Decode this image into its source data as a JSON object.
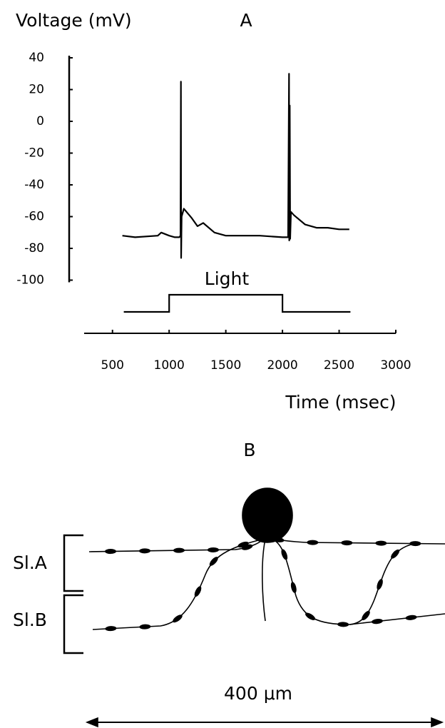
{
  "chart_data": {
    "type": "line",
    "title": "A",
    "y_label": "Voltage (mV)",
    "x_label": "Time (msec)",
    "x": [
      587,
      700,
      900,
      930,
      1000,
      1050,
      1090,
      1100,
      1104,
      1106,
      1110,
      1130,
      1200,
      1250,
      1300,
      1400,
      1500,
      1600,
      1800,
      2000,
      2050,
      2058,
      2060,
      2064,
      2068,
      2075,
      2100,
      2200,
      2300,
      2400,
      2500,
      2590
    ],
    "series": [
      {
        "color": "#000000",
        "values": [
          -72,
          -73,
          -72,
          -70,
          -72,
          -73,
          -73,
          -72,
          25,
          -86,
          -60,
          -55,
          -61,
          -66,
          -64,
          -70,
          -72,
          -72,
          -72,
          -73,
          -73,
          30,
          -75,
          10,
          -74,
          -57,
          -59,
          -65,
          -67,
          -67,
          -68,
          -68
        ]
      }
    ],
    "xlim": [
      250,
      3000
    ],
    "xticks": [
      500,
      1000,
      1500,
      2000,
      2500,
      3000
    ],
    "ylim": [
      -100,
      40
    ],
    "yticks": [
      -100,
      -80,
      -60,
      -40,
      -20,
      0,
      20,
      40
    ],
    "light": {
      "name": "Light",
      "x": [
        600,
        1000,
        1000,
        2000,
        2000,
        2600
      ],
      "levels": [
        0,
        0,
        1,
        1,
        0,
        0
      ]
    }
  },
  "panel_b": {
    "title": "B",
    "layers": [
      "Sl.A",
      "Sl.B"
    ],
    "scale_label": "400 μm"
  }
}
